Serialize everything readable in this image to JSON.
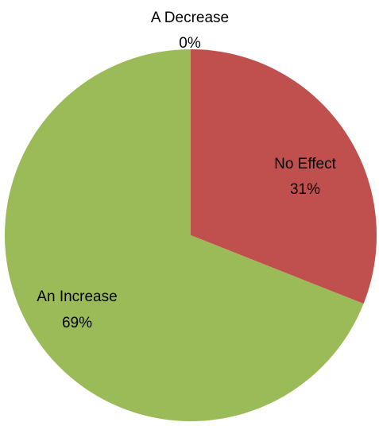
{
  "chart_data": {
    "type": "pie",
    "start_angle_deg": 0,
    "direction": "clockwise",
    "slices": [
      {
        "label": "A Decrease",
        "value": 0,
        "percent_label": "0%",
        "color": "#4F81BD"
      },
      {
        "label": "No Effect",
        "value": 31,
        "percent_label": "31%",
        "color": "#C0504D"
      },
      {
        "label": "An Increase",
        "value": 69,
        "percent_label": "69%",
        "color": "#9BBB59"
      }
    ],
    "legend": "none"
  }
}
